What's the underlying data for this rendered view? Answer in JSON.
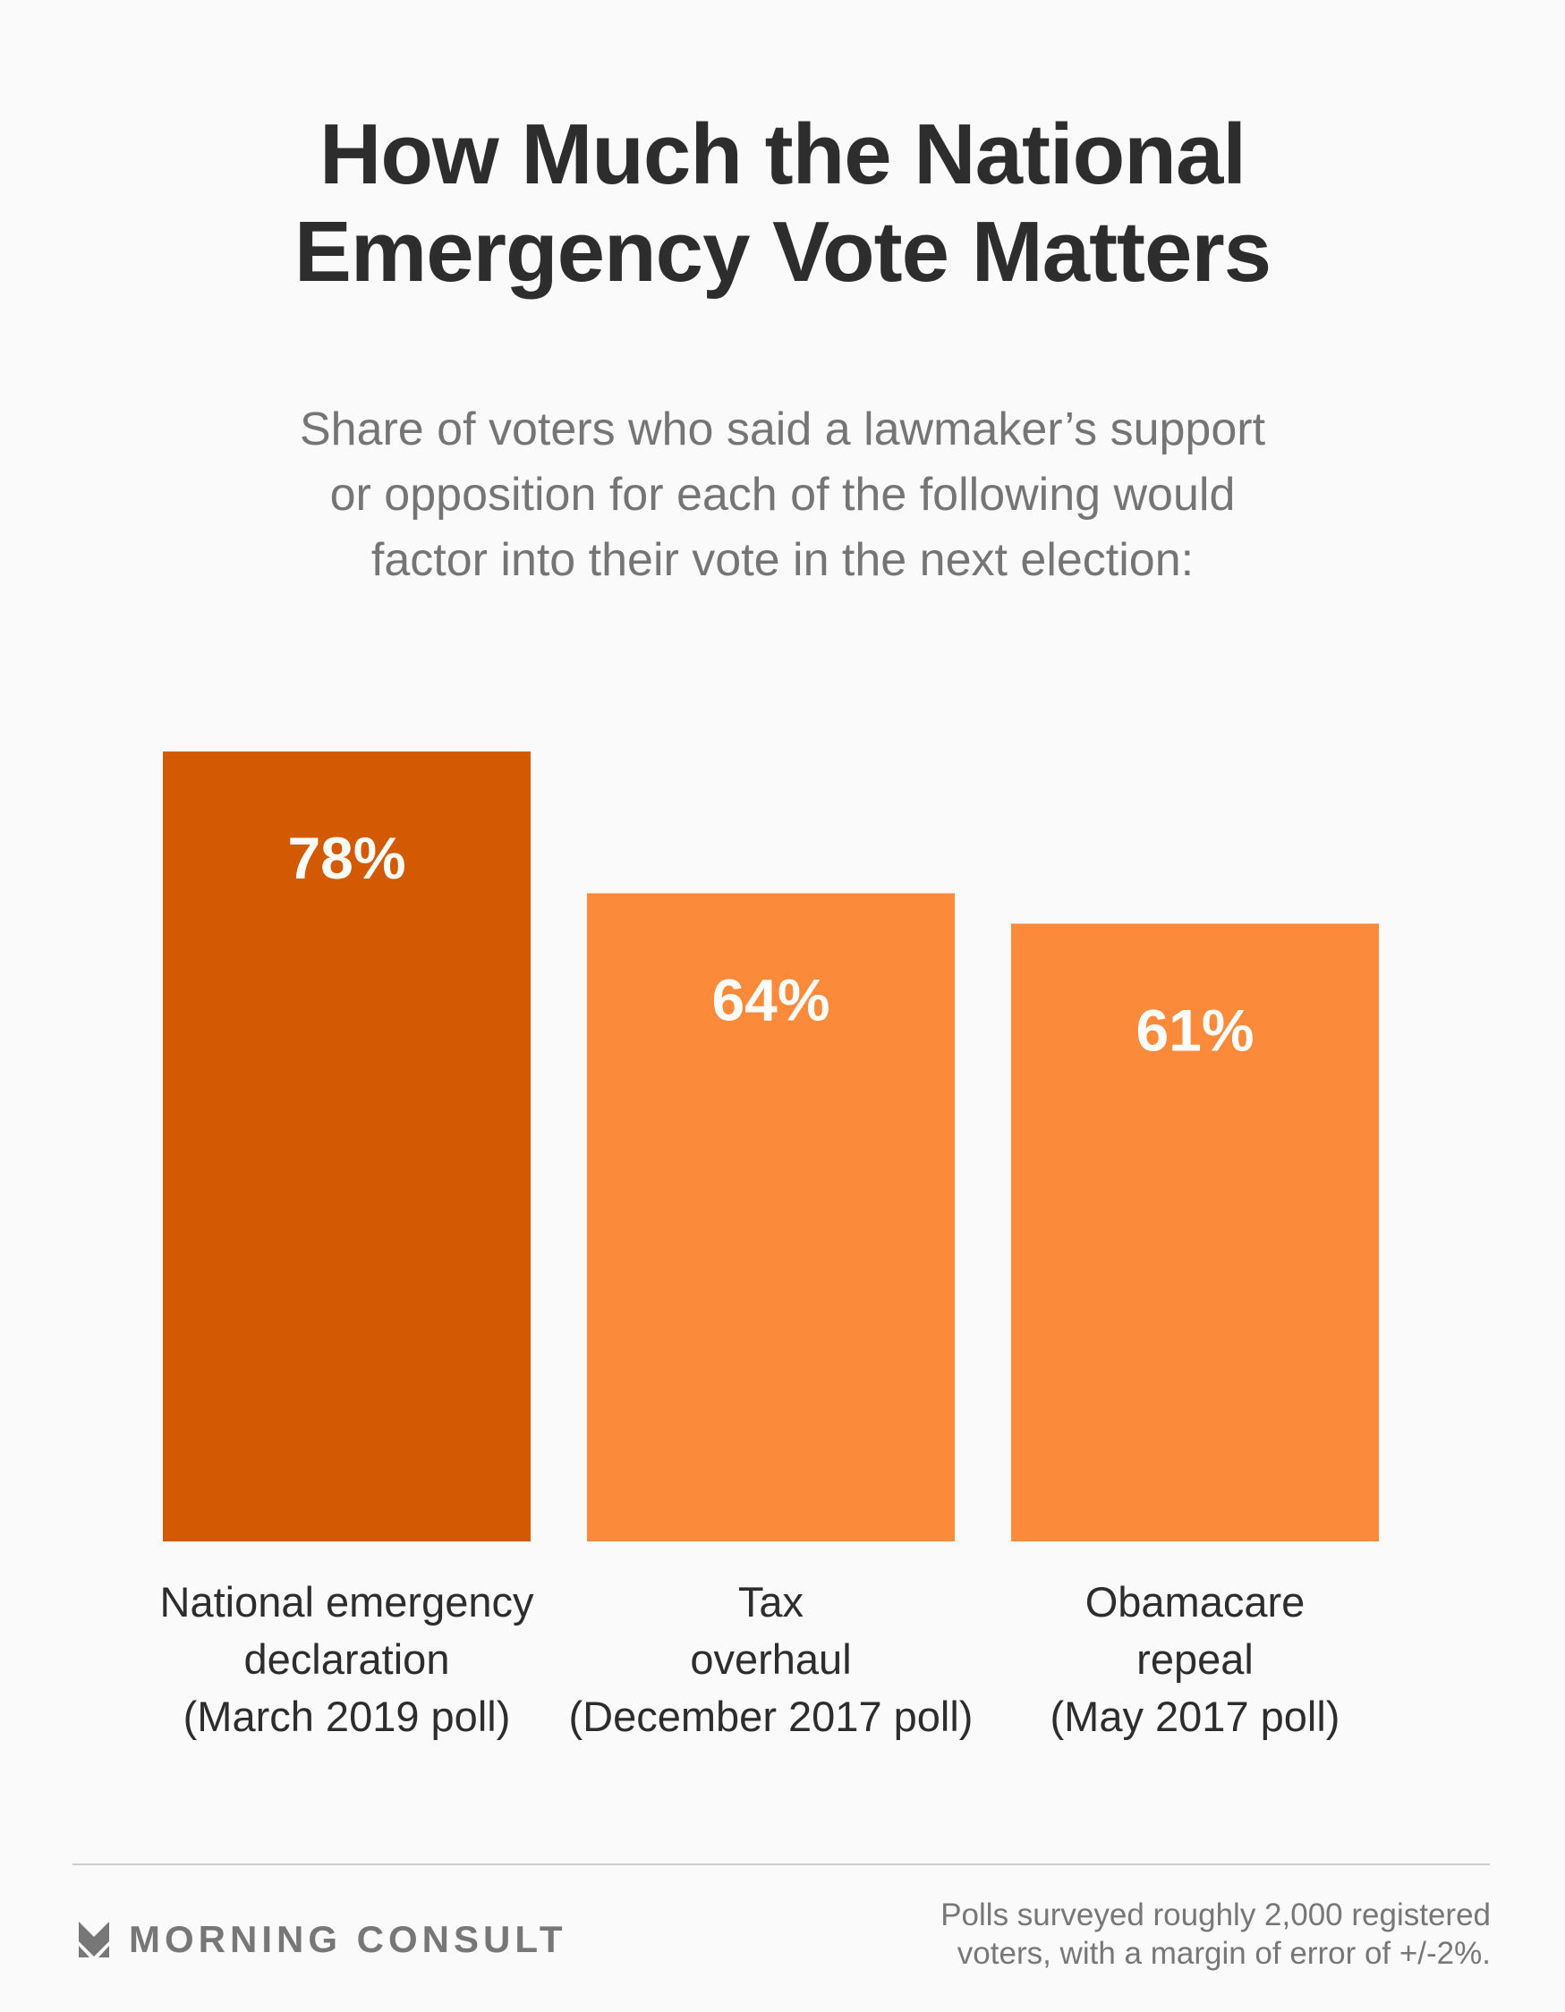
{
  "header": {
    "title_lines": [
      "How Much the National",
      "Emergency Vote Matters"
    ],
    "subtitle_lines": [
      "Share of voters who said a lawmaker’s support",
      "or opposition for each of the following would",
      "factor into their vote in the next election:"
    ]
  },
  "chart_data": {
    "type": "bar",
    "title": "How Much the National Emergency Vote Matters",
    "subtitle": "Share of voters who said a lawmaker’s support or opposition for each of the following would factor into their vote in the next election:",
    "categories": [
      "National emergency declaration (March 2019 poll)",
      "Tax overhaul (December 2017 poll)",
      "Obamacare repeal (May 2017 poll)"
    ],
    "category_label_lines": [
      [
        "National emergency",
        "declaration",
        "(March 2019 poll)"
      ],
      [
        "Tax",
        "overhaul",
        "(December 2017 poll)"
      ],
      [
        "Obamacare",
        "repeal",
        "(May 2017 poll)"
      ]
    ],
    "values": [
      78,
      64,
      61
    ],
    "value_labels": [
      "78%",
      "64%",
      "61%"
    ],
    "unit": "%",
    "bar_colors": [
      "#d35a03",
      "#fb8a3b",
      "#fb8a3b"
    ],
    "xlabel": "",
    "ylabel": "",
    "ylim": [
      0,
      100
    ],
    "grid": false,
    "legend": "none"
  },
  "footer": {
    "brand": "MORNING CONSULT",
    "brand_icon": "morning-consult-chevron-logo",
    "footnote_lines": [
      "Polls surveyed roughly 2,000 registered",
      "voters, with a margin of error of +/-2%."
    ]
  },
  "colors": {
    "background": "#fafafa",
    "title": "#2d2d2d",
    "subtitle": "#757575",
    "highlight_bar": "#d35a03",
    "bar": "#fb8a3b",
    "footer_text": "#777777",
    "divider": "#cccccc"
  }
}
